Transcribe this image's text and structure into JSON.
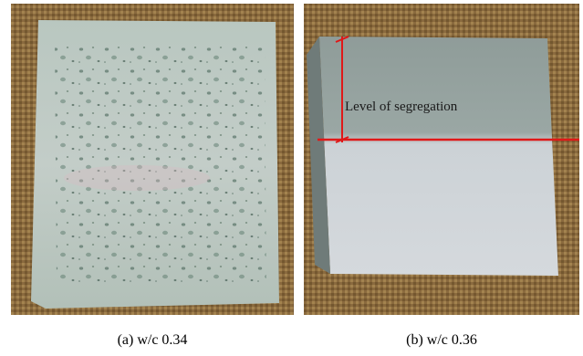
{
  "figure": {
    "panels": [
      {
        "caption": "(a) w/c 0.34"
      },
      {
        "caption": "(b) w/c 0.36",
        "annotation": "Level of segregation"
      }
    ]
  }
}
